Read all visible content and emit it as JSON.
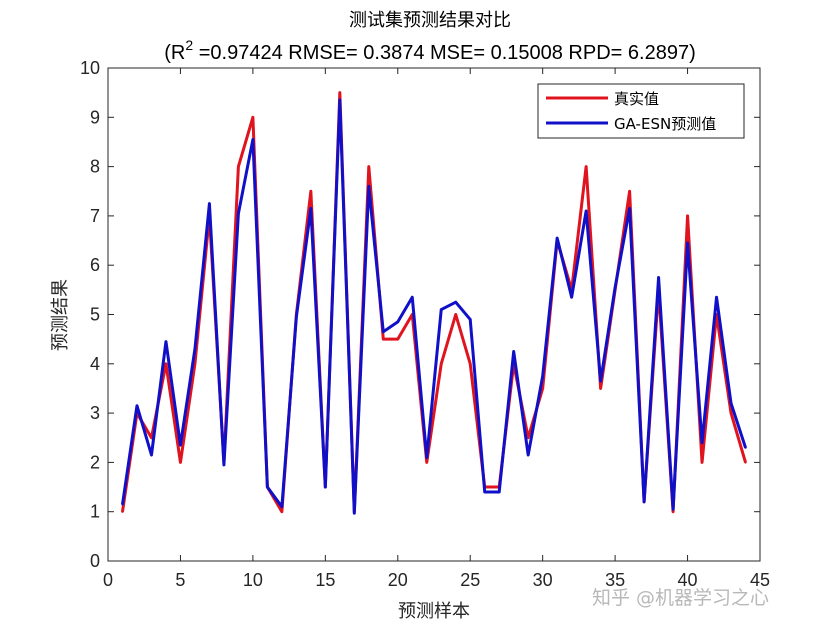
{
  "chart_data": {
    "type": "line",
    "title": "测试集预测结果对比",
    "subtitle": {
      "prefix": "(R",
      "sup": "2",
      "rest": " =0.97424 RMSE= 0.3874 MSE= 0.15008 RPD= 6.2897)"
    },
    "xlabel": "预测样本",
    "ylabel": "预测结果",
    "xlim": [
      0,
      45
    ],
    "ylim": [
      0,
      10
    ],
    "xticks": [
      "0",
      "5",
      "10",
      "15",
      "20",
      "25",
      "30",
      "35",
      "40",
      "45"
    ],
    "yticks": [
      "0",
      "1",
      "2",
      "3",
      "4",
      "5",
      "6",
      "7",
      "8",
      "9",
      "10"
    ],
    "grid": false,
    "legend_position": "top-right",
    "x": [
      1,
      2,
      3,
      4,
      5,
      6,
      7,
      8,
      9,
      10,
      11,
      12,
      13,
      14,
      15,
      16,
      17,
      18,
      19,
      20,
      21,
      22,
      23,
      24,
      25,
      26,
      27,
      28,
      29,
      30,
      31,
      32,
      33,
      34,
      35,
      36,
      37,
      38,
      39,
      40,
      41,
      42,
      43,
      44
    ],
    "series": [
      {
        "name": "真实值",
        "color": "#e0141e",
        "values": [
          1.0,
          3.0,
          2.5,
          4.0,
          2.0,
          4.0,
          7.0,
          2.0,
          8.0,
          9.0,
          1.5,
          1.0,
          5.0,
          7.5,
          1.5,
          9.5,
          1.0,
          8.0,
          4.5,
          4.5,
          5.0,
          2.0,
          4.0,
          5.0,
          4.0,
          1.5,
          1.5,
          4.0,
          2.5,
          3.5,
          6.5,
          5.5,
          8.0,
          3.5,
          5.5,
          7.5,
          1.2,
          5.5,
          1.0,
          7.0,
          2.0,
          5.0,
          3.0,
          2.0
        ]
      },
      {
        "name": "GA-ESN预测值",
        "color": "#1010c8",
        "values": [
          1.15,
          3.15,
          2.15,
          4.45,
          2.35,
          4.3,
          7.25,
          1.95,
          7.05,
          8.55,
          1.5,
          1.1,
          4.95,
          7.15,
          1.5,
          9.35,
          0.97,
          7.6,
          4.65,
          4.85,
          5.35,
          2.1,
          5.1,
          5.25,
          4.9,
          1.4,
          1.4,
          4.25,
          2.15,
          3.75,
          6.55,
          5.35,
          7.1,
          3.65,
          5.55,
          7.15,
          1.2,
          5.75,
          1.05,
          6.45,
          2.4,
          5.35,
          3.2,
          2.3
        ]
      }
    ]
  },
  "watermark": "知乎 @机器学习之心"
}
